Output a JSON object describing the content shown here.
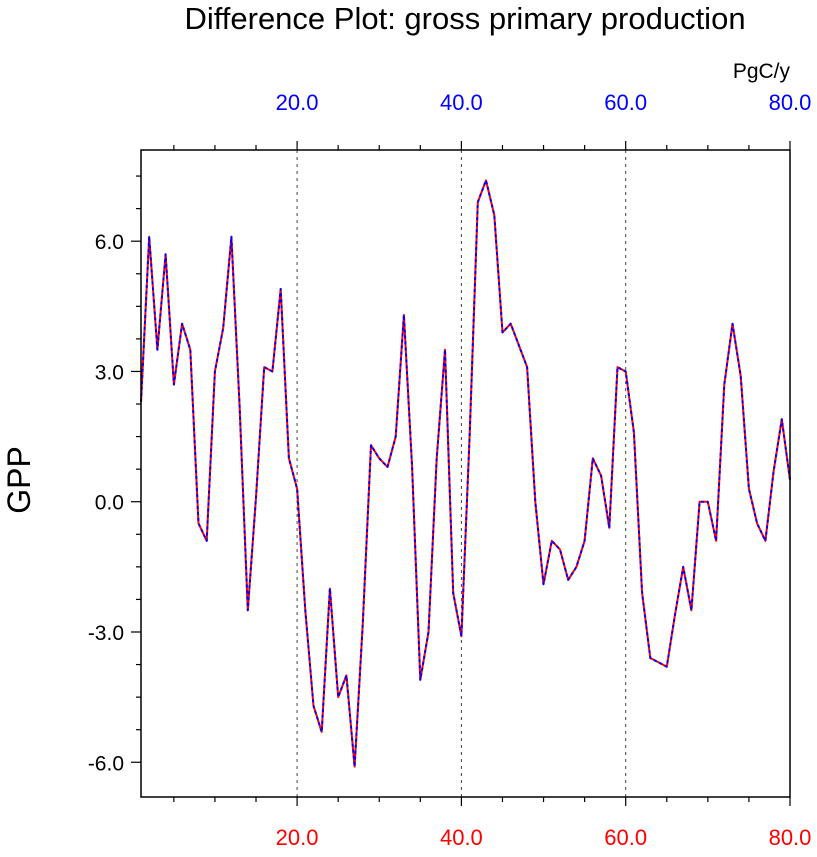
{
  "chart_data": {
    "type": "line",
    "title": "Difference Plot: gross primary production",
    "units": "PgC/y",
    "ylabel": "GPP",
    "xlabel": "",
    "xlim": [
      1,
      80
    ],
    "ylim": [
      -6.8,
      8.1
    ],
    "x_ticks": [
      20,
      40,
      60,
      80
    ],
    "x_tick_labels_top": [
      "20.0",
      "40.0",
      "60.0",
      "80.0"
    ],
    "x_tick_labels_bottom": [
      "20.0",
      "40.0",
      "60.0",
      "80.0"
    ],
    "y_ticks": [
      -6,
      -3,
      0,
      3,
      6
    ],
    "y_tick_labels": [
      "-6.0",
      "-3.0",
      "0.0",
      "3.0",
      "6.0"
    ],
    "grid": "vertical dashed at major x ticks",
    "top_axis_color": "#0000ff",
    "bottom_axis_color": "#ff0000",
    "series": [
      {
        "name": "line-red",
        "color": "#ff0000",
        "style": "solid",
        "x": [
          1,
          2,
          3,
          4,
          5,
          6,
          7,
          8,
          9,
          10,
          11,
          12,
          13,
          14,
          15,
          16,
          17,
          18,
          19,
          20,
          21,
          22,
          23,
          24,
          25,
          26,
          27,
          28,
          29,
          30,
          31,
          32,
          33,
          34,
          35,
          36,
          37,
          38,
          39,
          40,
          41,
          42,
          43,
          44,
          45,
          46,
          47,
          48,
          49,
          50,
          51,
          52,
          53,
          54,
          55,
          56,
          57,
          58,
          59,
          60,
          61,
          62,
          63,
          64,
          65,
          66,
          67,
          68,
          69,
          70,
          71,
          72,
          73,
          74,
          75,
          76,
          77,
          78,
          79,
          80
        ],
        "values": [
          2.3,
          6.1,
          3.5,
          5.7,
          2.7,
          4.1,
          3.5,
          -0.5,
          -0.9,
          3.0,
          4.0,
          6.1,
          2.2,
          -2.5,
          0.1,
          3.1,
          3.0,
          4.9,
          1.0,
          0.3,
          -2.5,
          -4.7,
          -5.3,
          -2.0,
          -4.5,
          -4.0,
          -6.1,
          -2.8,
          1.3,
          1.0,
          0.8,
          1.5,
          4.3,
          0.8,
          -4.1,
          -3.0,
          1.0,
          3.5,
          -2.1,
          -3.1,
          1.5,
          6.9,
          7.4,
          6.6,
          3.9,
          4.1,
          3.6,
          3.1,
          0.0,
          -1.9,
          -0.9,
          -1.1,
          -1.8,
          -1.5,
          -0.9,
          1.0,
          0.6,
          -0.6,
          3.1,
          3.0,
          1.6,
          -2.1,
          -3.6,
          -3.7,
          -3.8,
          -2.6,
          -1.5,
          -2.5,
          0.0,
          0.0,
          -0.9,
          2.7,
          4.1,
          2.9,
          0.3,
          -0.5,
          -0.9,
          0.7,
          1.9,
          0.5
        ]
      },
      {
        "name": "line-blue",
        "color": "#0000ff",
        "style": "dashed",
        "x": [
          1,
          2,
          3,
          4,
          5,
          6,
          7,
          8,
          9,
          10,
          11,
          12,
          13,
          14,
          15,
          16,
          17,
          18,
          19,
          20,
          21,
          22,
          23,
          24,
          25,
          26,
          27,
          28,
          29,
          30,
          31,
          32,
          33,
          34,
          35,
          36,
          37,
          38,
          39,
          40,
          41,
          42,
          43,
          44,
          45,
          46,
          47,
          48,
          49,
          50,
          51,
          52,
          53,
          54,
          55,
          56,
          57,
          58,
          59,
          60,
          61,
          62,
          63,
          64,
          65,
          66,
          67,
          68,
          69,
          70,
          71,
          72,
          73,
          74,
          75,
          76,
          77,
          78,
          79,
          80
        ],
        "values": [
          2.3,
          6.1,
          3.5,
          5.7,
          2.7,
          4.1,
          3.5,
          -0.5,
          -0.9,
          3.0,
          4.0,
          6.1,
          2.2,
          -2.5,
          0.1,
          3.1,
          3.0,
          4.9,
          1.0,
          0.3,
          -2.5,
          -4.7,
          -5.3,
          -2.0,
          -4.5,
          -4.0,
          -6.1,
          -2.8,
          1.3,
          1.0,
          0.8,
          1.5,
          4.3,
          0.8,
          -4.1,
          -3.0,
          1.0,
          3.5,
          -2.1,
          -3.1,
          1.5,
          6.9,
          7.4,
          6.6,
          3.9,
          4.1,
          3.6,
          3.1,
          0.0,
          -1.9,
          -0.9,
          -1.1,
          -1.8,
          -1.5,
          -0.9,
          1.0,
          0.6,
          -0.6,
          3.1,
          3.0,
          1.6,
          -2.1,
          -3.6,
          -3.7,
          -3.8,
          -2.6,
          -1.5,
          -2.5,
          0.0,
          0.0,
          -0.9,
          2.7,
          4.1,
          2.9,
          0.3,
          -0.5,
          -0.9,
          0.7,
          1.9,
          0.5
        ]
      }
    ]
  }
}
